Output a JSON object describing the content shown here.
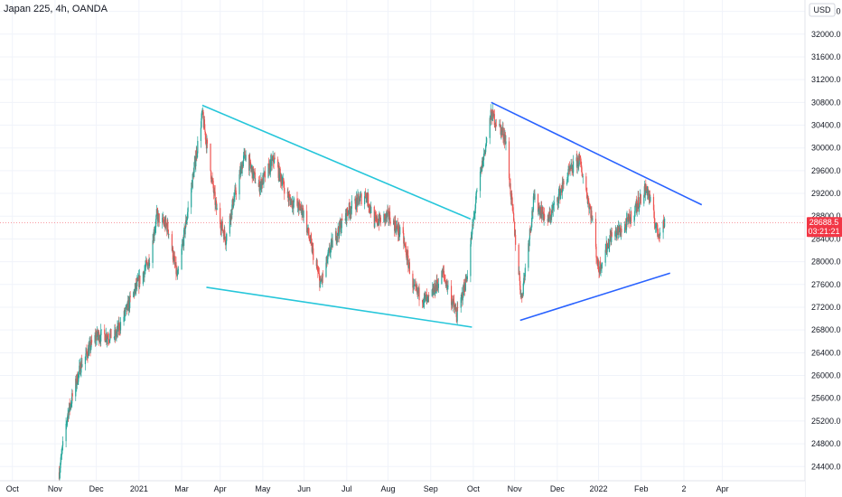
{
  "header": {
    "title": "Japan 225, 4h, OANDA",
    "currency_label": "USD"
  },
  "colors": {
    "up": "#26a69a",
    "down": "#ef5350",
    "price_line": "#f23645",
    "cyan_trend": "#26c6da",
    "blue_trend": "#2962ff",
    "grid": "#f0f3fa",
    "axis_text": "#131722"
  },
  "price_tag": {
    "price": "28688.5",
    "countdown": "03:21:21"
  },
  "chart_data": {
    "type": "candlestick",
    "y_ticks": [
      "24400.0",
      "24800.0",
      "25200.0",
      "25600.0",
      "26000.0",
      "26400.0",
      "26800.0",
      "27200.0",
      "27600.0",
      "28000.0",
      "28400.0",
      "28800.0",
      "29200.0",
      "29600.0",
      "30000.0",
      "30400.0",
      "30800.0",
      "31200.0",
      "31600.0",
      "32000.0",
      "32400.0"
    ],
    "x_ticks": [
      "Oct",
      "Nov",
      "Dec",
      "2021",
      "Mar",
      "Apr",
      "May",
      "Jun",
      "Jul",
      "Aug",
      "Sep",
      "Oct",
      "Nov",
      "Dec",
      "2022",
      "Feb",
      "2",
      "Apr"
    ],
    "ylim": [
      24150,
      32600
    ],
    "xlim": [
      "2020-09-22",
      "2022-04-30"
    ],
    "last_price": 28688.5,
    "path_anchors": [
      [
        "2020-11-04",
        24300
      ],
      [
        "2020-11-10",
        25300
      ],
      [
        "2020-11-20",
        26200
      ],
      [
        "2020-12-01",
        26700
      ],
      [
        "2020-12-15",
        26700
      ],
      [
        "2020-12-29",
        27500
      ],
      [
        "2021-01-08",
        28000
      ],
      [
        "2021-01-14",
        28800
      ],
      [
        "2021-01-22",
        28600
      ],
      [
        "2021-01-29",
        27700
      ],
      [
        "2021-02-08",
        29300
      ],
      [
        "2021-02-16",
        30600
      ],
      [
        "2021-02-26",
        28950
      ],
      [
        "2021-03-05",
        28400
      ],
      [
        "2021-03-10",
        29000
      ],
      [
        "2021-03-19",
        29900
      ],
      [
        "2021-03-29",
        29300
      ],
      [
        "2021-04-09",
        29800
      ],
      [
        "2021-04-20",
        29100
      ],
      [
        "2021-04-30",
        28900
      ],
      [
        "2021-05-13",
        27600
      ],
      [
        "2021-05-21",
        28300
      ],
      [
        "2021-06-02",
        28900
      ],
      [
        "2021-06-15",
        29200
      ],
      [
        "2021-06-21",
        28700
      ],
      [
        "2021-07-02",
        28800
      ],
      [
        "2021-07-12",
        28400
      ],
      [
        "2021-07-20",
        27500
      ],
      [
        "2021-07-30",
        27300
      ],
      [
        "2021-08-10",
        27800
      ],
      [
        "2021-08-20",
        27050
      ],
      [
        "2021-08-27",
        27700
      ],
      [
        "2021-09-03",
        29100
      ],
      [
        "2021-09-14",
        30600
      ],
      [
        "2021-09-24",
        30200
      ],
      [
        "2021-10-06",
        27350
      ],
      [
        "2021-10-15",
        29100
      ],
      [
        "2021-10-25",
        28700
      ],
      [
        "2021-11-08",
        29500
      ],
      [
        "2021-11-17",
        29800
      ],
      [
        "2021-11-26",
        28800
      ],
      [
        "2021-12-01",
        27850
      ],
      [
        "2021-12-10",
        28450
      ],
      [
        "2021-12-20",
        28600
      ],
      [
        "2021-12-29",
        29000
      ],
      [
        "2022-01-05",
        29300
      ],
      [
        "2022-01-13",
        28500
      ],
      [
        "2022-01-18",
        28688.5
      ]
    ],
    "trendlines": [
      {
        "color": "cyan",
        "from": [
          "2021-02-16",
          30750
        ],
        "to": [
          "2021-08-30",
          28750
        ]
      },
      {
        "color": "cyan",
        "from": [
          "2021-02-19",
          27550
        ],
        "to": [
          "2021-08-31",
          26850
        ]
      },
      {
        "color": "blue",
        "from": [
          "2021-09-14",
          30800
        ],
        "to": [
          "2022-02-14",
          29000
        ]
      },
      {
        "color": "blue",
        "from": [
          "2021-10-05",
          26970
        ],
        "to": [
          "2022-01-22",
          27800
        ]
      }
    ]
  }
}
